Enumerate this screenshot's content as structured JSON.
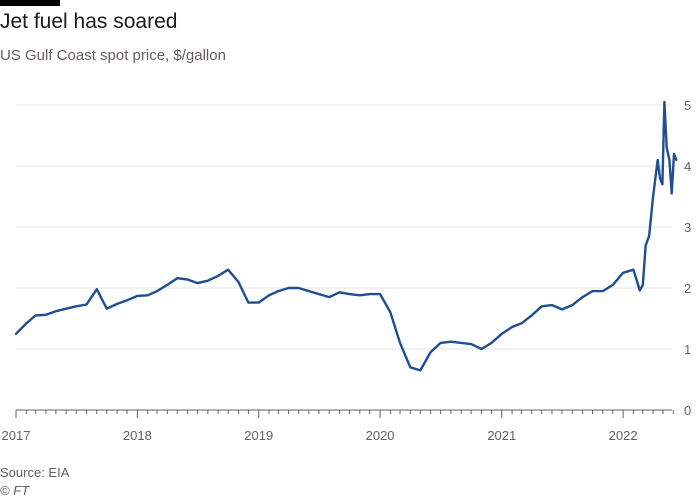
{
  "header": {
    "title": "Jet fuel has soared",
    "subtitle": "US Gulf Coast spot price, $/gallon"
  },
  "footer": {
    "source": "Source: EIA",
    "copyright": "© FT"
  },
  "colors": {
    "line": "#1f4e91",
    "grid": "#e6e3df",
    "axis": "#66605c",
    "brand_bar": "#000000"
  },
  "chart_data": {
    "type": "line",
    "title": "Jet fuel has soared",
    "subtitle": "US Gulf Coast spot price, $/gallon",
    "xlabel": "",
    "ylabel": "",
    "ylim": [
      0,
      5
    ],
    "xlim": [
      "2017-01-01",
      "2022-06-15"
    ],
    "y_axis_side": "right",
    "grid": true,
    "x_ticks": [
      "2017",
      "2018",
      "2019",
      "2020",
      "2021",
      "2022"
    ],
    "y_ticks": [
      "0",
      "1",
      "2",
      "3",
      "4",
      "5"
    ],
    "series": [
      {
        "x": [
          "2017-01-01",
          "2017-02-01",
          "2017-03-01",
          "2017-04-01",
          "2017-05-01",
          "2017-06-01",
          "2017-07-01",
          "2017-08-01",
          "2017-09-01",
          "2017-10-01",
          "2017-11-01",
          "2017-12-01",
          "2018-01-01",
          "2018-02-01",
          "2018-03-01",
          "2018-04-01",
          "2018-05-01",
          "2018-06-01",
          "2018-07-01",
          "2018-08-01",
          "2018-09-01",
          "2018-10-01",
          "2018-11-01",
          "2018-12-01",
          "2019-01-01",
          "2019-02-01",
          "2019-03-01",
          "2019-04-01",
          "2019-05-01",
          "2019-06-01",
          "2019-07-01",
          "2019-08-01",
          "2019-09-01",
          "2019-10-01",
          "2019-11-01",
          "2019-12-01",
          "2020-01-01",
          "2020-02-01",
          "2020-03-01",
          "2020-04-01",
          "2020-05-01",
          "2020-06-01",
          "2020-07-01",
          "2020-08-01",
          "2020-09-01",
          "2020-10-01",
          "2020-11-01",
          "2020-12-01",
          "2021-01-01",
          "2021-02-01",
          "2021-03-01",
          "2021-04-01",
          "2021-05-01",
          "2021-06-01",
          "2021-07-01",
          "2021-08-01",
          "2021-09-01",
          "2021-10-01",
          "2021-11-01",
          "2021-12-01",
          "2022-01-01",
          "2022-02-01",
          "2022-02-20",
          "2022-03-01",
          "2022-03-10",
          "2022-03-20",
          "2022-04-01",
          "2022-04-15",
          "2022-04-22",
          "2022-04-29",
          "2022-05-05",
          "2022-05-12",
          "2022-05-20",
          "2022-05-27",
          "2022-06-03",
          "2022-06-10"
        ],
        "values": [
          1.25,
          1.42,
          1.55,
          1.56,
          1.62,
          1.66,
          1.7,
          1.73,
          1.98,
          1.66,
          1.74,
          1.8,
          1.87,
          1.88,
          1.95,
          2.05,
          2.16,
          2.14,
          2.08,
          2.12,
          2.2,
          2.3,
          2.1,
          1.76,
          1.76,
          1.88,
          1.95,
          2.0,
          2.0,
          1.95,
          1.9,
          1.85,
          1.93,
          1.9,
          1.88,
          1.9,
          1.9,
          1.6,
          1.1,
          0.7,
          0.65,
          0.95,
          1.1,
          1.12,
          1.1,
          1.08,
          1.0,
          1.1,
          1.25,
          1.36,
          1.42,
          1.55,
          1.7,
          1.72,
          1.65,
          1.72,
          1.85,
          1.95,
          1.95,
          2.05,
          2.25,
          2.3,
          1.96,
          2.05,
          2.7,
          2.85,
          3.5,
          4.1,
          3.8,
          3.7,
          5.05,
          4.3,
          4.1,
          3.55,
          4.2,
          4.1
        ]
      }
    ]
  }
}
